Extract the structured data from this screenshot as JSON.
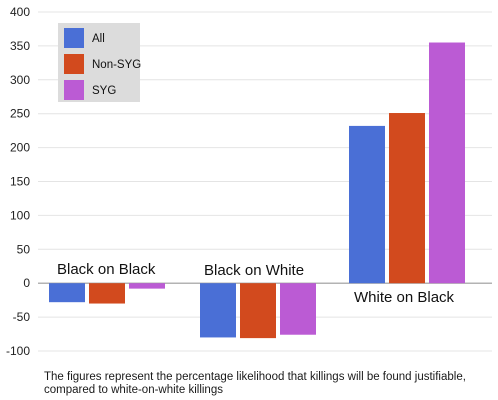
{
  "chart_data": {
    "type": "bar",
    "title": "",
    "xlabel": "",
    "ylabel": "",
    "ylim": [
      -100,
      400
    ],
    "yticks": [
      -100,
      -50,
      0,
      50,
      100,
      150,
      200,
      250,
      300,
      350,
      400
    ],
    "ytick_labels": [
      "-100",
      "-50",
      "0",
      "50",
      "100",
      "150",
      "200",
      "250",
      "300",
      "350",
      "400"
    ],
    "grid": "horizontal",
    "legend_position": "top-left",
    "categories": [
      "Black on Black",
      "Black on White",
      "White on Black"
    ],
    "series": [
      {
        "name": "All",
        "color": "#4a6fd6",
        "values": [
          -28,
          -80,
          232
        ]
      },
      {
        "name": "Non-SYG",
        "color": "#d24a1e",
        "values": [
          -30,
          -81,
          251
        ]
      },
      {
        "name": "SYG",
        "color": "#bb5bd4",
        "values": [
          -8,
          -76,
          355
        ]
      }
    ]
  },
  "caption": {
    "line1": "The figures represent the percentage likelihood that killings will be found justifiable,",
    "line2": "compared to white-on-white killings"
  }
}
